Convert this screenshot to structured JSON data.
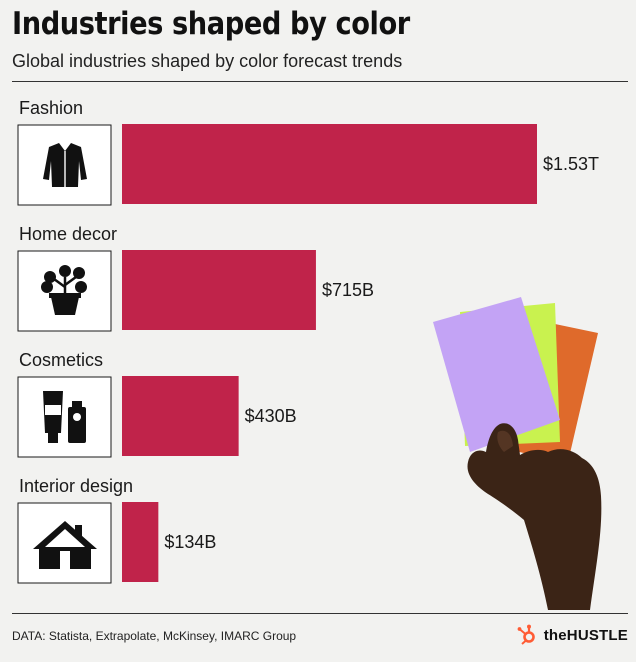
{
  "header": {
    "title": "Industries shaped by color",
    "subtitle": "Global industries shaped by color forecast trends"
  },
  "chart_data": {
    "type": "bar",
    "orientation": "horizontal",
    "title": "Industries shaped by color",
    "subtitle": "Global industries shaped by color forecast trends",
    "categories": [
      "Fashion",
      "Home decor",
      "Cosmetics",
      "Interior design"
    ],
    "values": [
      1530,
      715,
      430,
      134
    ],
    "value_unit": "billion USD",
    "value_labels": [
      "$1.53T",
      "$715B",
      "$430B",
      "$134B"
    ],
    "icons": [
      "jacket-icon",
      "plant-icon",
      "cosmetics-icon",
      "house-icon"
    ],
    "xlim": [
      0,
      1530
    ],
    "grid": false,
    "legend": "none",
    "bar_color": "#c0234a"
  },
  "footer": {
    "source": "DATA: Statista, Extrapolate, McKinsey, IMARC Group",
    "brand": "theHUSTLE",
    "brand_icon": "hubspot-sprocket-icon",
    "brand_color": "#ff5c35"
  },
  "illustration": {
    "name": "hand-holding-color-swatches",
    "swatch_colors": [
      "#c4a4f6",
      "#c8f04e",
      "#e06a2a"
    ]
  }
}
